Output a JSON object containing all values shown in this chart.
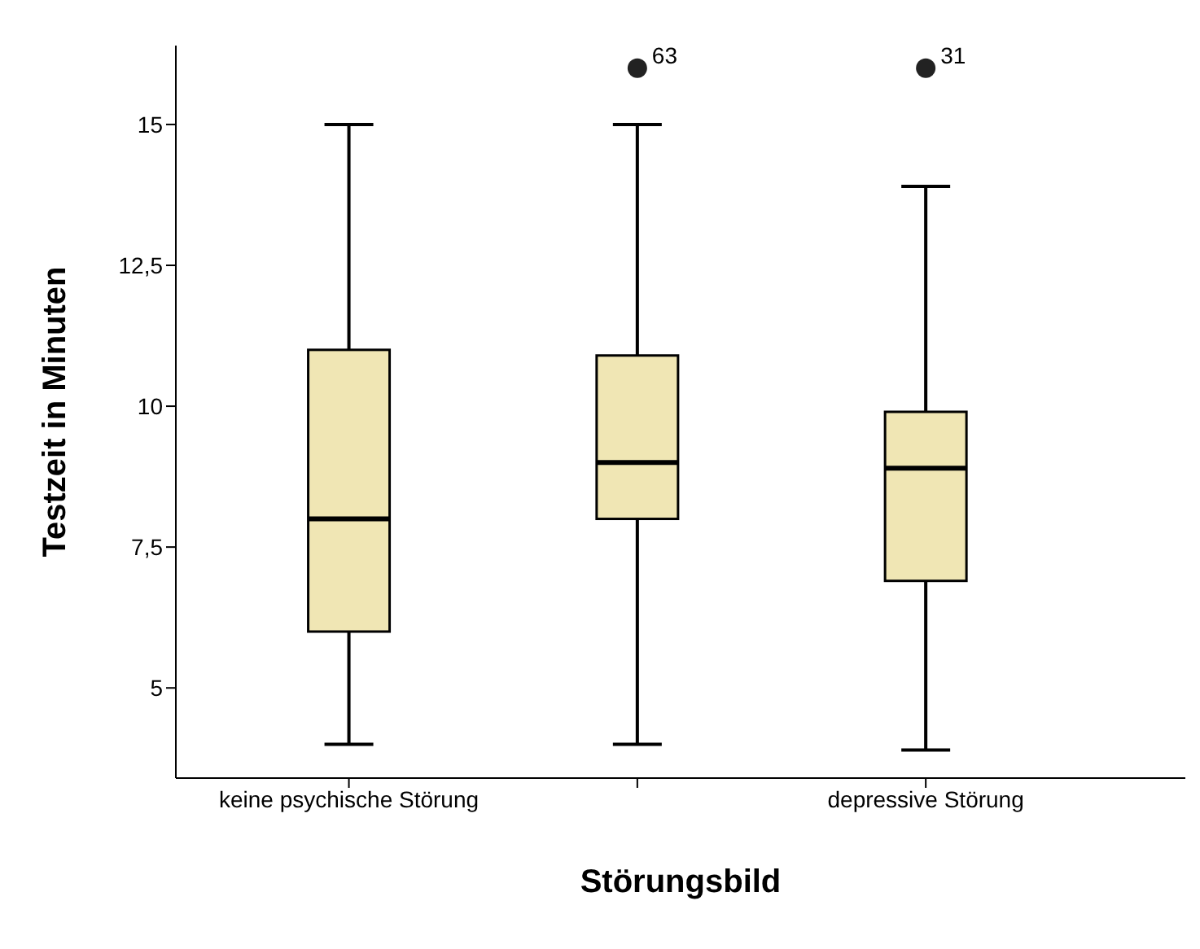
{
  "chart_data": {
    "type": "box",
    "xlabel": "Störungsbild",
    "ylabel": "Testzeit in Minuten",
    "categories": [
      "keine psychische Störung",
      null,
      "depressive Störung"
    ],
    "color": "#f0e6b4",
    "boxes": [
      {
        "low": 4,
        "q1": 6,
        "median": 8,
        "q3": 11,
        "high": 15
      },
      {
        "low": 4,
        "q1": 8,
        "median": 9,
        "q3": 10.9,
        "high": 15,
        "outliers": [
          16
        ]
      },
      {
        "low": 3.9,
        "q1": 6.9,
        "median": 8.9,
        "q3": 9.9,
        "high": 13.9,
        "outliers": [
          16
        ]
      }
    ],
    "ylim": [
      3.4,
      16.4
    ],
    "yticks": [
      {
        "value": 5,
        "label": "5"
      },
      {
        "value": 7.5,
        "label": "7,5"
      },
      {
        "value": 10,
        "label": "10"
      },
      {
        "value": 12.5,
        "label": "12,5"
      },
      {
        "value": 15,
        "label": "15"
      }
    ],
    "annotations": [
      "63",
      "31"
    ]
  }
}
